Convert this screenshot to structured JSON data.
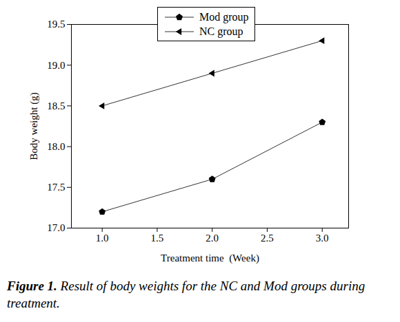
{
  "chart_data": {
    "type": "line",
    "caption": "Figure 1. Result of body weights for the NC and Mod groups during treatment.",
    "x_label": "Treatment time  (Week)",
    "y_label": "Body weight (g)",
    "x": [
      1,
      2,
      3
    ],
    "series": [
      {
        "name": "Mod group",
        "color": "#333333",
        "marker": "pentagon",
        "values": [
          17.2,
          17.6,
          18.3
        ]
      },
      {
        "name": "NC group",
        "color": "#333333",
        "marker": "triangle-left",
        "values": [
          18.5,
          18.9,
          19.3
        ]
      }
    ],
    "xlim": [
      0.72,
      3.24
    ],
    "xticks": [
      {
        "value": 1,
        "label": "1.0"
      },
      {
        "value": 1.5,
        "label": "1.5"
      },
      {
        "value": 2,
        "label": "2.0"
      },
      {
        "value": 2.5,
        "label": "2.5"
      },
      {
        "value": 3,
        "label": "3.0"
      }
    ],
    "ylim": [
      17.0,
      19.5
    ],
    "yticks": [
      {
        "value": 17,
        "label": "17.0"
      },
      {
        "value": 17.5,
        "label": "17.5"
      },
      {
        "value": 18,
        "label": "18.0"
      },
      {
        "value": 18.5,
        "label": "18.5"
      },
      {
        "value": 19,
        "label": "19.0"
      },
      {
        "value": 19.5,
        "label": "19.5"
      }
    ],
    "legend": "top",
    "grid": false
  }
}
